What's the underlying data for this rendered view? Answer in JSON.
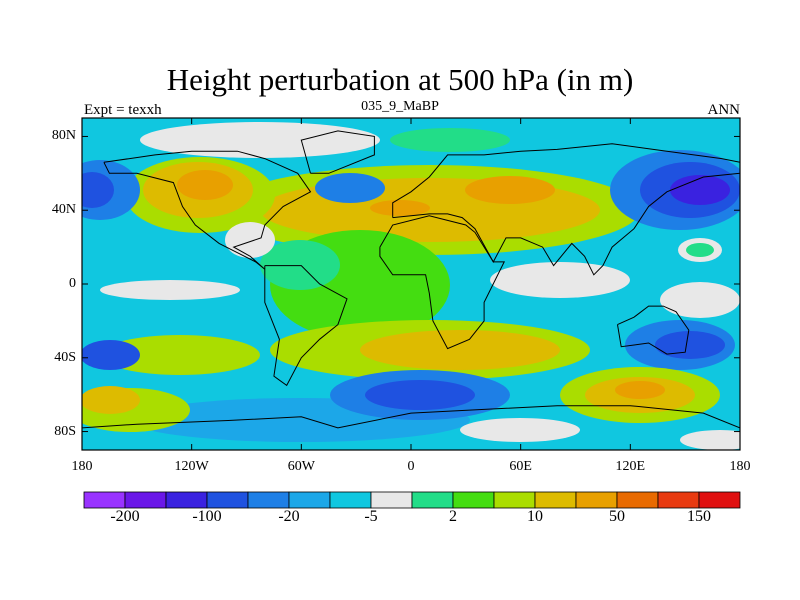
{
  "title": "Height perturbation at 500 hPa (in m)",
  "subtitle_left": "Expt = texxh",
  "subtitle_center": "035_9_MaBP",
  "subtitle_right": "ANN",
  "y_ticks": [
    {
      "label": "80N",
      "lat": 80
    },
    {
      "label": "40N",
      "lat": 40
    },
    {
      "label": "0",
      "lat": 0
    },
    {
      "label": "40S",
      "lat": -40
    },
    {
      "label": "80S",
      "lat": -80
    }
  ],
  "x_ticks": [
    {
      "label": "180",
      "lon": -180
    },
    {
      "label": "120W",
      "lon": -120
    },
    {
      "label": "60W",
      "lon": -60
    },
    {
      "label": "0",
      "lon": 0
    },
    {
      "label": "60E",
      "lon": 60
    },
    {
      "label": "120E",
      "lon": 120
    },
    {
      "label": "180",
      "lon": 180
    }
  ],
  "colorbar": {
    "colors": [
      "#9933ff",
      "#6a17e8",
      "#3a22e0",
      "#1f52e0",
      "#1e7fe6",
      "#1ca7e8",
      "#10c7e0",
      "#e8e8e8",
      "#22dd88",
      "#44dd11",
      "#aadd00",
      "#ddbb00",
      "#e8a000",
      "#e86a00",
      "#e83a10",
      "#e01010"
    ],
    "labels": [
      {
        "text": "-200",
        "index": 1
      },
      {
        "text": "-100",
        "index": 3
      },
      {
        "text": "-20",
        "index": 5
      },
      {
        "text": "-5",
        "index": 7
      },
      {
        "text": "2",
        "index": 9
      },
      {
        "text": "10",
        "index": 11
      },
      {
        "text": "50",
        "index": 13
      },
      {
        "text": "150",
        "index": 15
      }
    ]
  },
  "map_colors": {
    "blue_dark": "#3a22e0",
    "blue": "#1f52e0",
    "blue_mid": "#1e7fe6",
    "cyan": "#1ca7e8",
    "cyan_light": "#10c7e0",
    "white": "#e8e8e8",
    "green_light": "#22dd88",
    "green": "#44dd11",
    "yellow_green": "#aadd00",
    "yellow": "#ddbb00",
    "orange": "#e8a000",
    "orange_dark": "#e86a00"
  }
}
